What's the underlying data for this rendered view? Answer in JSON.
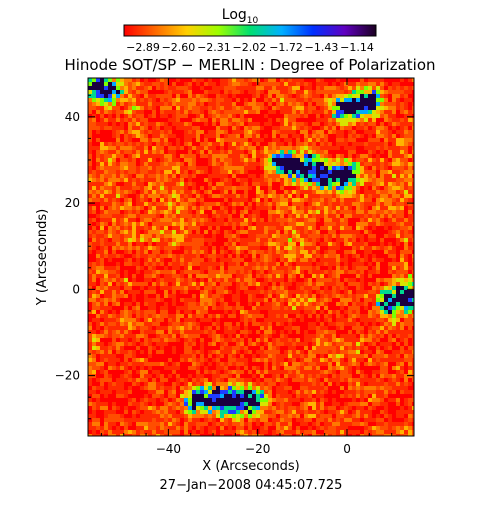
{
  "chart_data": {
    "type": "heatmap",
    "title": "Hinode SOT/SP − MERLIN : Degree of Polarization",
    "xlabel": "X (Arcseconds)",
    "ylabel": "Y (Arcseconds)",
    "xlim": [
      -58,
      15
    ],
    "ylim": [
      -34,
      49
    ],
    "x_ticks": [
      -40,
      -20,
      0
    ],
    "x_tick_labels": [
      "−40",
      "−20",
      "0"
    ],
    "y_ticks": [
      -20,
      0,
      20,
      40
    ],
    "y_tick_labels": [
      "−20",
      "0",
      "20",
      "40"
    ],
    "grid": false,
    "colorbar": {
      "label": "Log",
      "label_subscript": "10",
      "position": "top",
      "ticks": [
        -2.89,
        -2.6,
        -2.31,
        -2.02,
        -1.72,
        -1.43,
        -1.14
      ],
      "tick_labels": [
        "−2.89",
        "−2.60",
        "−2.31",
        "−2.02",
        "−1.72",
        "−1.43",
        "−1.14"
      ],
      "colormap": [
        "#ff0000",
        "#ff6a00",
        "#ffd000",
        "#9cff00",
        "#00e070",
        "#00b0ff",
        "#0030ff",
        "#6000c0",
        "#1a0020"
      ]
    },
    "timestamp": "27−Jan−2008 04:45:07.725"
  }
}
